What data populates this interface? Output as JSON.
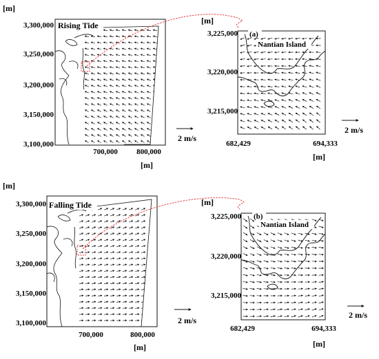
{
  "colors": {
    "ink": "#111111",
    "zoom_outline": "#e0302f"
  },
  "top": {
    "title": "Rising Tide",
    "y_unit": "[m]",
    "y_ticks": [
      "3,300,000",
      "3,250,000",
      "3,200,000",
      "3,150,000",
      "3,100,000"
    ],
    "x_ticks": [
      "700,000",
      "800,000"
    ],
    "x_unit": "[m]",
    "scale_label": "2 m/s",
    "inset": {
      "panel_label": "(a)",
      "place_label": "Nantian Island",
      "y_unit": "[m]",
      "y_ticks": [
        "3,225,000",
        "3,220,000",
        "3,215,000"
      ],
      "x_ticks": [
        "682,429",
        "694,333"
      ],
      "x_unit": "[m]",
      "scale_label": "2 m/s"
    }
  },
  "bottom": {
    "title": "Falling Tide",
    "y_unit": "[m]",
    "y_ticks": [
      "3,300,000",
      "3,250,000",
      "3,200,000",
      "3,150,000",
      "3,100,000"
    ],
    "x_ticks": [
      "700,000",
      "800,000"
    ],
    "x_unit": "[m]",
    "scale_label": "2 m/s",
    "inset": {
      "panel_label": "(b)",
      "place_label": "Nantian Island",
      "y_unit": "[m]",
      "y_ticks": [
        "3,225,000",
        "3,220,000",
        "3,215,000"
      ],
      "x_ticks": [
        "682,429",
        "694,333"
      ],
      "x_unit": "[m]",
      "scale_label": "2 m/s"
    }
  }
}
